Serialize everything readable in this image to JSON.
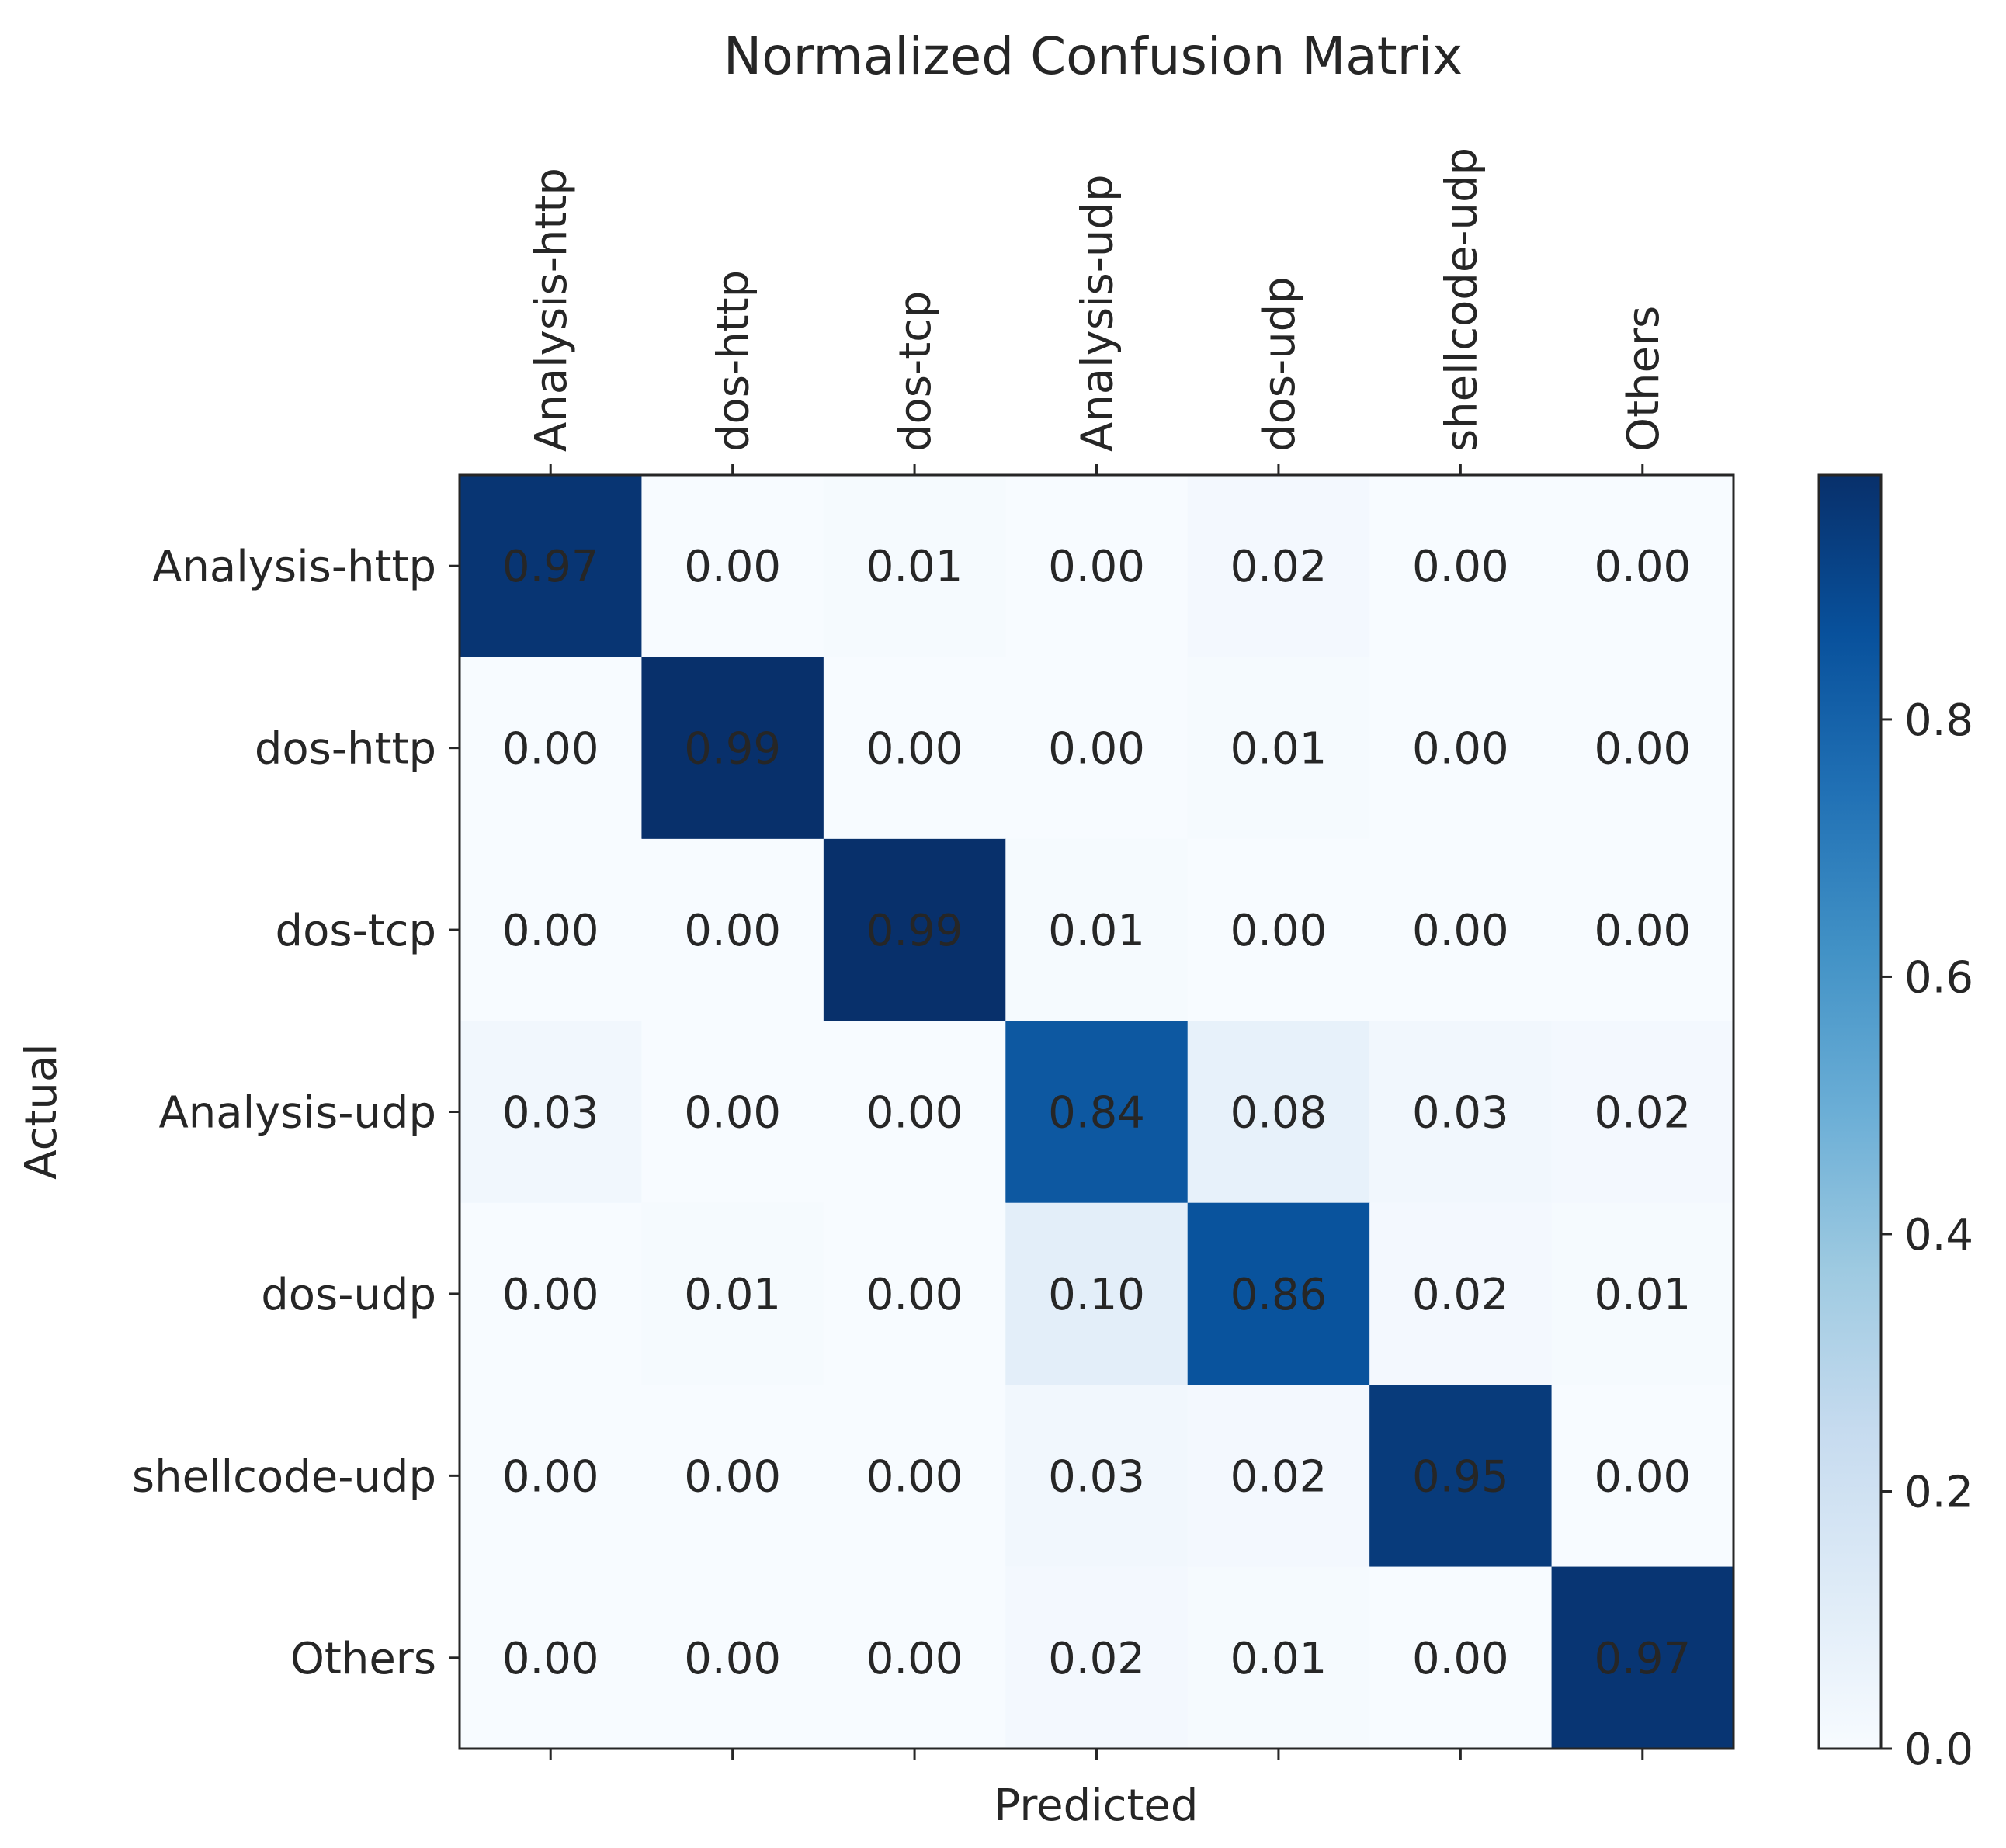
{
  "chart_data": {
    "type": "heatmap",
    "title": "Normalized Confusion Matrix",
    "xlabel": "Predicted",
    "ylabel": "Actual",
    "x_categories": [
      "Analysis-http",
      "dos-http",
      "dos-tcp",
      "Analysis-udp",
      "dos-udp",
      "shellcode-udp",
      "Others"
    ],
    "y_categories": [
      "Analysis-http",
      "dos-http",
      "dos-tcp",
      "Analysis-udp",
      "dos-udp",
      "shellcode-udp",
      "Others"
    ],
    "values": [
      [
        0.97,
        0.0,
        0.01,
        0.0,
        0.02,
        0.0,
        0.0
      ],
      [
        0.0,
        0.99,
        0.0,
        0.0,
        0.01,
        0.0,
        0.0
      ],
      [
        0.0,
        0.0,
        0.99,
        0.01,
        0.0,
        0.0,
        0.0
      ],
      [
        0.03,
        0.0,
        0.0,
        0.84,
        0.08,
        0.03,
        0.02
      ],
      [
        0.0,
        0.01,
        0.0,
        0.1,
        0.86,
        0.02,
        0.01
      ],
      [
        0.0,
        0.0,
        0.0,
        0.03,
        0.02,
        0.95,
        0.0
      ],
      [
        0.0,
        0.0,
        0.0,
        0.02,
        0.01,
        0.0,
        0.97
      ]
    ],
    "labels": [
      [
        "0.97",
        "0.00",
        "0.01",
        "0.00",
        "0.02",
        "0.00",
        "0.00"
      ],
      [
        "0.00",
        "0.99",
        "0.00",
        "0.00",
        "0.01",
        "0.00",
        "0.00"
      ],
      [
        "0.00",
        "0.00",
        "0.99",
        "0.01",
        "0.00",
        "0.00",
        "0.00"
      ],
      [
        "0.03",
        "0.00",
        "0.00",
        "0.84",
        "0.08",
        "0.03",
        "0.02"
      ],
      [
        "0.00",
        "0.01",
        "0.00",
        "0.10",
        "0.86",
        "0.02",
        "0.01"
      ],
      [
        "0.00",
        "0.00",
        "0.00",
        "0.03",
        "0.02",
        "0.95",
        "0.00"
      ],
      [
        "0.00",
        "0.00",
        "0.00",
        "0.02",
        "0.01",
        "0.00",
        "0.97"
      ]
    ],
    "colormap": "Blues",
    "colorbar": {
      "range": [
        0,
        0.99
      ],
      "ticks": [
        0.0,
        0.2,
        0.4,
        0.6,
        0.8
      ],
      "tick_labels": [
        "0.0",
        "0.2",
        "0.4",
        "0.6",
        "0.8"
      ]
    },
    "x_tick_position": "top",
    "grid": false
  }
}
